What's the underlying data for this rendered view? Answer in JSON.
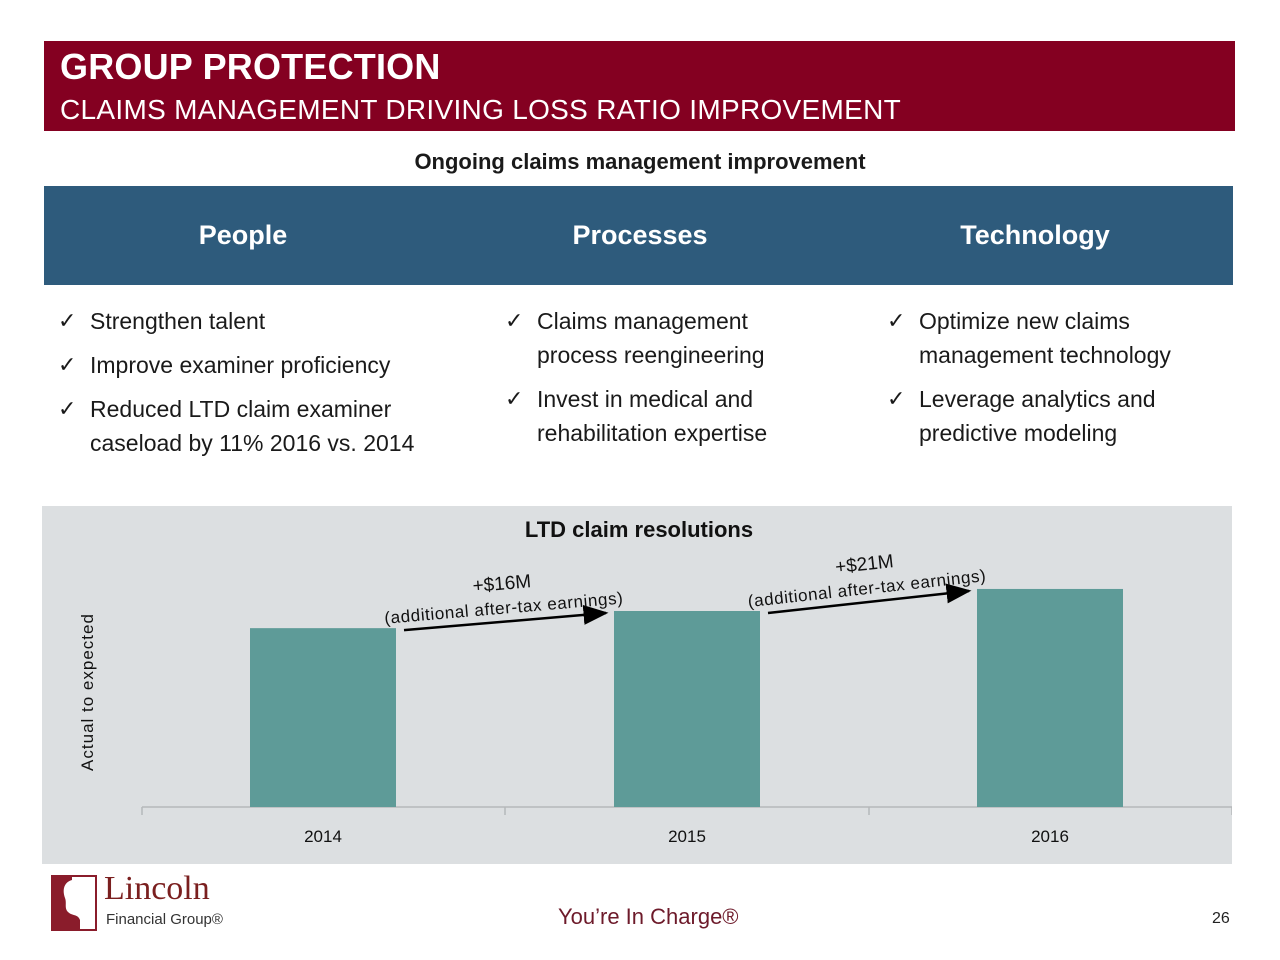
{
  "header": {
    "title": "GROUP PROTECTION",
    "subtitle": "CLAIMS MANAGEMENT DRIVING LOSS RATIO IMPROVEMENT"
  },
  "section_heading": "Ongoing claims management improvement",
  "pillars": [
    {
      "label": "People"
    },
    {
      "label": "Processes"
    },
    {
      "label": "Technology"
    }
  ],
  "bullets": {
    "people": [
      "Strengthen talent",
      "Improve examiner proficiency",
      "Reduced LTD claim examiner caseload by 11% 2016 vs. 2014"
    ],
    "processes": [
      "Claims management process reengineering",
      "Invest in medical and rehabilitation expertise"
    ],
    "technology": [
      "Optimize new claims management technology",
      "Leverage analytics and predictive modeling"
    ]
  },
  "chart_data": {
    "type": "bar",
    "title": "LTD claim resolutions",
    "ylabel": "Actual to expected",
    "categories": [
      "2014",
      "2015",
      "2016"
    ],
    "values": [
      0.73,
      0.8,
      0.89
    ],
    "ylim": [
      0,
      1
    ],
    "bar_color": "#5e9b98",
    "annotations": [
      {
        "from": "2014",
        "to": "2015",
        "label": "+$16M",
        "sublabel": "(additional after-tax earnings)"
      },
      {
        "from": "2015",
        "to": "2016",
        "label": "+$21M",
        "sublabel": "(additional after-tax earnings)"
      }
    ]
  },
  "footer": {
    "logo_line1": "Lincoln",
    "logo_line2": "Financial Group®",
    "tagline": "You’re In Charge®",
    "page_number": "26"
  },
  "colors": {
    "header_bg": "#840021",
    "pillar_bg": "#2e5b7c",
    "chart_bg": "#dcdfe1"
  }
}
